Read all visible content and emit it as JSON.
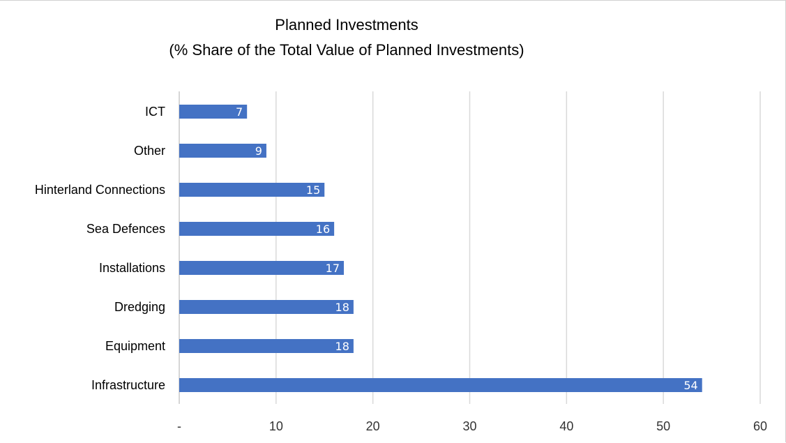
{
  "chart_data": {
    "type": "bar",
    "orientation": "horizontal",
    "title": "Planned Investments",
    "subtitle": "(% Share of the Total Value of Planned Investments)",
    "xlabel": "",
    "ylabel": "",
    "categories": [
      "ICT",
      "Other",
      "Hinterland Connections",
      "Sea Defences",
      "Installations",
      "Dredging",
      "Equipment",
      "Infrastructure"
    ],
    "values": [
      7,
      9,
      15,
      16,
      17,
      18,
      18,
      54
    ],
    "data_labels": [
      "7",
      "9",
      "15",
      "16",
      "17",
      "18",
      "18",
      "54"
    ],
    "xlim": [
      0,
      60
    ],
    "x_ticks": [
      0,
      10,
      20,
      30,
      40,
      50,
      60
    ],
    "x_tick_labels": [
      "-",
      "10",
      "20",
      "30",
      "40",
      "50",
      "60"
    ],
    "grid": "vertical",
    "legend": "none",
    "bar_color": "#4472C4",
    "grid_color": "#d9d9d9",
    "label_color": "#ffffff"
  }
}
